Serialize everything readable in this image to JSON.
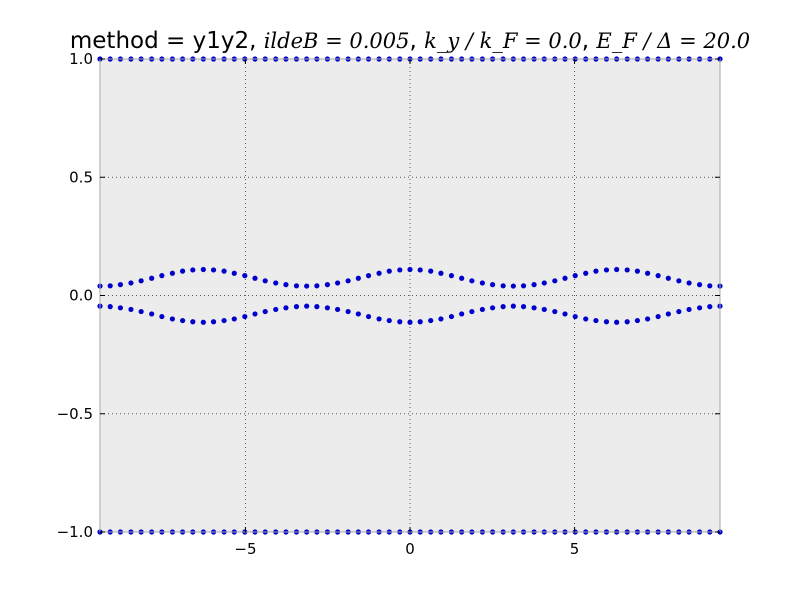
{
  "title": {
    "prefix": "method = y1y2, ",
    "param1": "ildeB = 0.005",
    "sep1": ", ",
    "param2": "k_y / k_F = 0.0",
    "sep2": ", ",
    "param3": "E_F / Δ = 20.0"
  },
  "colors": {
    "plot_background": "#ececec",
    "marker": "#0000cc",
    "grid": "#555555",
    "axes": "#aaaaaa",
    "text": "#000000"
  },
  "chart_data": {
    "type": "scatter",
    "xlim": [
      -9.42,
      9.42
    ],
    "ylim": [
      -1.0,
      1.0
    ],
    "xticks": [
      -5,
      0,
      5
    ],
    "xtick_labels": [
      "−5",
      "0",
      "5"
    ],
    "yticks": [
      -1.0,
      -0.5,
      0.0,
      0.5,
      1.0
    ],
    "ytick_labels": [
      "−1.0",
      "−0.5",
      "0.0",
      "0.5",
      "1.0"
    ],
    "grid": true,
    "grid_style": "dotted",
    "marker": "circle",
    "series": [
      {
        "x": [
          -9.42,
          -9.11,
          -8.8,
          -8.48,
          -8.17,
          -7.85,
          -7.54,
          -7.22,
          -6.91,
          -6.6,
          -6.28,
          -5.97,
          -5.65,
          -5.34,
          -5.02,
          -4.71,
          -4.4,
          -4.08,
          -3.77,
          -3.45,
          -3.14,
          -2.83,
          -2.51,
          -2.2,
          -1.88,
          -1.57,
          -1.26,
          -0.94,
          -0.63,
          -0.31,
          0.0,
          0.31,
          0.63,
          0.94,
          1.26,
          1.57,
          1.88,
          2.2,
          2.51,
          2.83,
          3.14,
          3.45,
          3.77,
          4.08,
          4.4,
          4.71,
          5.02,
          5.34,
          5.65,
          5.97,
          6.28,
          6.6,
          6.91,
          7.22,
          7.54,
          7.85,
          8.17,
          8.48,
          8.8,
          9.11,
          9.42
        ],
        "y": [
          0.04,
          0.041,
          0.046,
          0.053,
          0.062,
          0.073,
          0.084,
          0.094,
          0.103,
          0.108,
          0.11,
          0.108,
          0.103,
          0.094,
          0.084,
          0.073,
          0.062,
          0.053,
          0.046,
          0.041,
          0.04,
          0.041,
          0.046,
          0.053,
          0.062,
          0.073,
          0.084,
          0.094,
          0.103,
          0.108,
          0.11,
          0.108,
          0.103,
          0.094,
          0.084,
          0.073,
          0.062,
          0.053,
          0.046,
          0.041,
          0.04,
          0.041,
          0.046,
          0.053,
          0.062,
          0.073,
          0.084,
          0.094,
          0.103,
          0.108,
          0.11,
          0.108,
          0.103,
          0.094,
          0.084,
          0.073,
          0.062,
          0.053,
          0.046,
          0.041,
          0.04
        ]
      },
      {
        "x": [
          -9.42,
          -9.11,
          -8.8,
          -8.48,
          -8.17,
          -7.85,
          -7.54,
          -7.22,
          -6.91,
          -6.6,
          -6.28,
          -5.97,
          -5.65,
          -5.34,
          -5.02,
          -4.71,
          -4.4,
          -4.08,
          -3.77,
          -3.45,
          -3.14,
          -2.83,
          -2.51,
          -2.2,
          -1.88,
          -1.57,
          -1.26,
          -0.94,
          -0.63,
          -0.31,
          0.0,
          0.31,
          0.63,
          0.94,
          1.26,
          1.57,
          1.88,
          2.2,
          2.51,
          2.83,
          3.14,
          3.45,
          3.77,
          4.08,
          4.4,
          4.71,
          5.02,
          5.34,
          5.65,
          5.97,
          6.28,
          6.6,
          6.91,
          7.22,
          7.54,
          7.85,
          8.17,
          8.48,
          8.8,
          9.11,
          9.42
        ],
        "y": [
          -0.045,
          -0.047,
          -0.052,
          -0.059,
          -0.068,
          -0.078,
          -0.089,
          -0.099,
          -0.106,
          -0.111,
          -0.113,
          -0.111,
          -0.106,
          -0.099,
          -0.089,
          -0.078,
          -0.068,
          -0.059,
          -0.052,
          -0.047,
          -0.045,
          -0.047,
          -0.052,
          -0.059,
          -0.068,
          -0.078,
          -0.089,
          -0.099,
          -0.106,
          -0.111,
          -0.113,
          -0.111,
          -0.106,
          -0.099,
          -0.089,
          -0.078,
          -0.068,
          -0.059,
          -0.052,
          -0.047,
          -0.045,
          -0.047,
          -0.052,
          -0.059,
          -0.068,
          -0.078,
          -0.089,
          -0.099,
          -0.106,
          -0.111,
          -0.113,
          -0.111,
          -0.106,
          -0.099,
          -0.089,
          -0.078,
          -0.068,
          -0.059,
          -0.052,
          -0.047,
          -0.045
        ]
      },
      {
        "x": [
          -9.42,
          -9.11,
          -8.8,
          -8.48,
          -8.17,
          -7.85,
          -7.54,
          -7.22,
          -6.91,
          -6.6,
          -6.28,
          -5.97,
          -5.65,
          -5.34,
          -5.02,
          -4.71,
          -4.4,
          -4.08,
          -3.77,
          -3.45,
          -3.14,
          -2.83,
          -2.51,
          -2.2,
          -1.88,
          -1.57,
          -1.26,
          -0.94,
          -0.63,
          -0.31,
          0.0,
          0.31,
          0.63,
          0.94,
          1.26,
          1.57,
          1.88,
          2.2,
          2.51,
          2.83,
          3.14,
          3.45,
          3.77,
          4.08,
          4.4,
          4.71,
          5.02,
          5.34,
          5.65,
          5.97,
          6.28,
          6.6,
          6.91,
          7.22,
          7.54,
          7.85,
          8.17,
          8.48,
          8.8,
          9.11,
          9.42
        ],
        "y": [
          1.0,
          1.0,
          1.0,
          1.0,
          1.0,
          1.0,
          1.0,
          1.0,
          1.0,
          1.0,
          1.0,
          1.0,
          1.0,
          1.0,
          1.0,
          1.0,
          1.0,
          1.0,
          1.0,
          1.0,
          1.0,
          1.0,
          1.0,
          1.0,
          1.0,
          1.0,
          1.0,
          1.0,
          1.0,
          1.0,
          1.0,
          1.0,
          1.0,
          1.0,
          1.0,
          1.0,
          1.0,
          1.0,
          1.0,
          1.0,
          1.0,
          1.0,
          1.0,
          1.0,
          1.0,
          1.0,
          1.0,
          1.0,
          1.0,
          1.0,
          1.0,
          1.0,
          1.0,
          1.0,
          1.0,
          1.0,
          1.0,
          1.0,
          1.0,
          1.0,
          1.0
        ]
      },
      {
        "x": [
          -9.42,
          -9.11,
          -8.8,
          -8.48,
          -8.17,
          -7.85,
          -7.54,
          -7.22,
          -6.91,
          -6.6,
          -6.28,
          -5.97,
          -5.65,
          -5.34,
          -5.02,
          -4.71,
          -4.4,
          -4.08,
          -3.77,
          -3.45,
          -3.14,
          -2.83,
          -2.51,
          -2.2,
          -1.88,
          -1.57,
          -1.26,
          -0.94,
          -0.63,
          -0.31,
          0.0,
          0.31,
          0.63,
          0.94,
          1.26,
          1.57,
          1.88,
          2.2,
          2.51,
          2.83,
          3.14,
          3.45,
          3.77,
          4.08,
          4.4,
          4.71,
          5.02,
          5.34,
          5.65,
          5.97,
          6.28,
          6.6,
          6.91,
          7.22,
          7.54,
          7.85,
          8.17,
          8.48,
          8.8,
          9.11,
          9.42
        ],
        "y": [
          -1.0,
          -1.0,
          -1.0,
          -1.0,
          -1.0,
          -1.0,
          -1.0,
          -1.0,
          -1.0,
          -1.0,
          -1.0,
          -1.0,
          -1.0,
          -1.0,
          -1.0,
          -1.0,
          -1.0,
          -1.0,
          -1.0,
          -1.0,
          -1.0,
          -1.0,
          -1.0,
          -1.0,
          -1.0,
          -1.0,
          -1.0,
          -1.0,
          -1.0,
          -1.0,
          -1.0,
          -1.0,
          -1.0,
          -1.0,
          -1.0,
          -1.0,
          -1.0,
          -1.0,
          -1.0,
          -1.0,
          -1.0,
          -1.0,
          -1.0,
          -1.0,
          -1.0,
          -1.0,
          -1.0,
          -1.0,
          -1.0,
          -1.0,
          -1.0,
          -1.0,
          -1.0,
          -1.0,
          -1.0,
          -1.0,
          -1.0,
          -1.0,
          -1.0,
          -1.0,
          -1.0
        ]
      }
    ]
  }
}
